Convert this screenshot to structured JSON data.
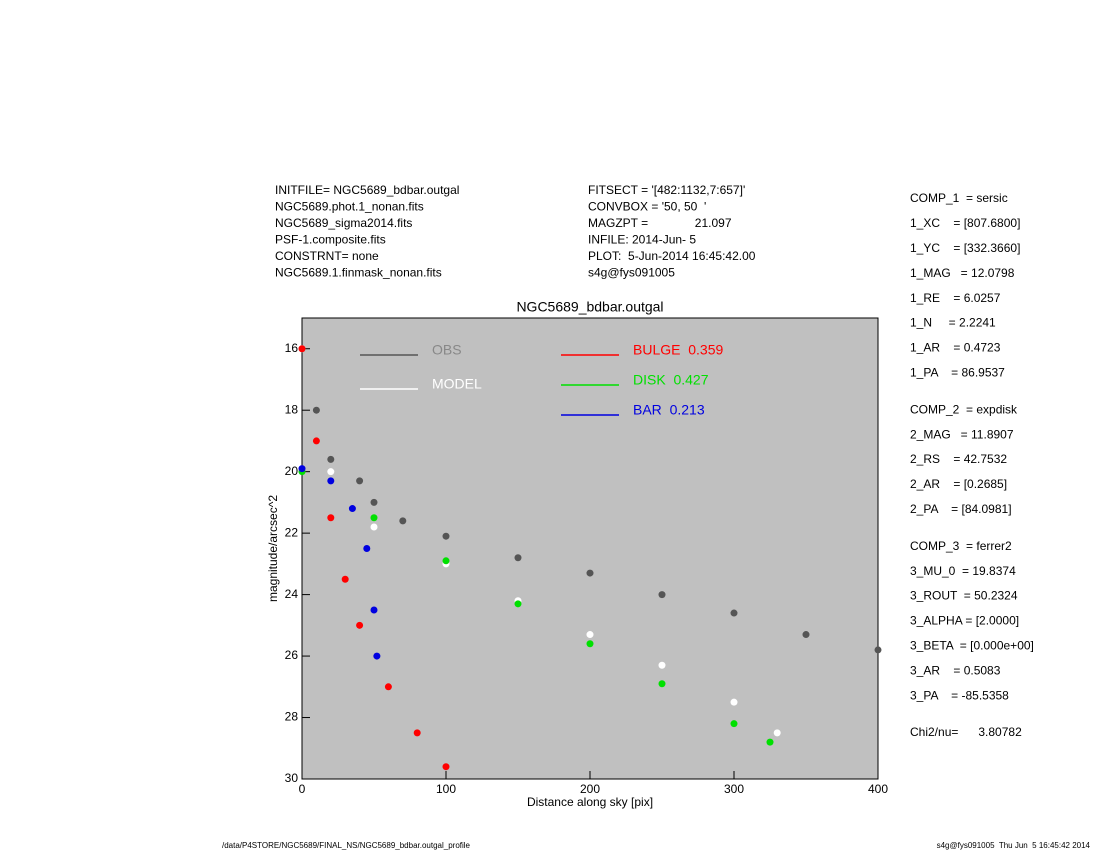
{
  "header": {
    "left": [
      "INITFILE= NGC5689_bdbar.outgal",
      "NGC5689.phot.1_nonan.fits",
      "NGC5689_sigma2014.fits",
      "PSF-1.composite.fits",
      "CONSTRNT= none",
      "NGC5689.1.finmask_nonan.fits"
    ],
    "middle": [
      "FITSECT = '[482:1132,7:657]'",
      "CONVBOX = '50, 50  '",
      "MAGZPT =              21.097",
      "INFILE: 2014-Jun- 5",
      "PLOT:  5-Jun-2014 16:45:42.00",
      "s4g@fys091005"
    ]
  },
  "params": [
    "COMP_1  = sersic",
    "1_XC    = [807.6800]",
    "1_YC    = [332.3660]",
    "1_MAG   = 12.0798",
    "1_RE    = 6.0257",
    "1_N     = 2.2241",
    "1_AR    = 0.4723",
    "1_PA    = 86.9537",
    "COMP_2  = expdisk",
    "2_MAG   = 11.8907",
    "2_RS    = 42.7532",
    "2_AR    = [0.2685]",
    "2_PA    = [84.0981]",
    "COMP_3  = ferrer2",
    "3_MU_0  = 19.8374",
    "3_ROUT  = 50.2324",
    "3_ALPHA = [2.0000]",
    "3_BETA  = [0.000e+00]",
    "3_AR    = 0.5083",
    "3_PA    = -85.5358",
    "Chi2/nu=      3.80782"
  ],
  "footer": {
    "left": "/data/P4STORE/NGC5689/FINAL_NS/NGC5689_bdbar.outgal_profile",
    "right": "s4g@fys091005  Thu Jun  5 16:45:42 2014"
  },
  "chart_data": {
    "type": "scatter",
    "title": "NGC5689_bdbar.outgal",
    "x_label": "Distance along sky [pix]",
    "y_label": "magnitude/arcsec^2",
    "xlim": [
      0,
      400
    ],
    "xticks": [
      0,
      100,
      200,
      300,
      400
    ],
    "ylim": [
      30,
      15
    ],
    "yticks": [
      16,
      18,
      20,
      22,
      24,
      26,
      28,
      30
    ],
    "background": "#c0c0c0",
    "series": [
      {
        "name": "OBS",
        "color": "#555555",
        "x": [
          0,
          10,
          20,
          40,
          50,
          70,
          100,
          150,
          200,
          250,
          300,
          350,
          400
        ],
        "values": [
          16,
          18,
          19.6,
          20.3,
          21,
          21.6,
          22.1,
          22.8,
          23.3,
          24,
          24.6,
          25.3,
          25.8
        ]
      },
      {
        "name": "MODEL",
        "color": "#ffffff",
        "x": [
          0,
          20,
          50,
          100,
          150,
          200,
          250,
          300,
          330
        ],
        "values": [
          16,
          20,
          21.8,
          23,
          24.2,
          25.3,
          26.3,
          27.5,
          28.5
        ]
      },
      {
        "name": "BULGE  0.359",
        "color": "#ff0000",
        "x": [
          0,
          10,
          20,
          30,
          40,
          60,
          80,
          100
        ],
        "values": [
          16,
          19,
          21.5,
          23.5,
          25,
          27,
          28.5,
          29.6
        ]
      },
      {
        "name": "DISK  0.427",
        "color": "#00e000",
        "x": [
          0,
          50,
          100,
          150,
          200,
          250,
          300,
          325
        ],
        "values": [
          20,
          21.5,
          22.9,
          24.3,
          25.6,
          26.9,
          28.2,
          28.8
        ]
      },
      {
        "name": "BAR  0.213",
        "color": "#0000e0",
        "x": [
          0,
          20,
          35,
          45,
          50,
          52
        ],
        "values": [
          19.9,
          20.3,
          21.2,
          22.5,
          24.5,
          26
        ]
      }
    ]
  }
}
